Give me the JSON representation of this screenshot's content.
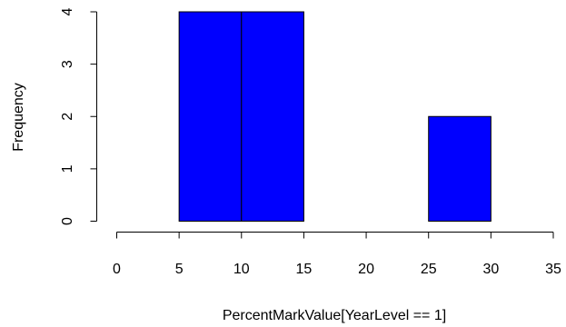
{
  "chart_data": {
    "type": "bar",
    "title": "",
    "xlabel": "PercentMarkValue[YearLevel == 1]",
    "ylabel": "Frequency",
    "bins": [
      {
        "start": 5,
        "end": 10,
        "count": 4
      },
      {
        "start": 10,
        "end": 15,
        "count": 4
      },
      {
        "start": 15,
        "end": 20,
        "count": 0
      },
      {
        "start": 20,
        "end": 25,
        "count": 0
      },
      {
        "start": 25,
        "end": 30,
        "count": 2
      }
    ],
    "xlim": [
      0,
      35
    ],
    "ylim": [
      0,
      4
    ],
    "x_ticks": [
      0,
      5,
      10,
      15,
      20,
      25,
      30,
      35
    ],
    "y_ticks": [
      0,
      1,
      2,
      3,
      4
    ],
    "grid": false,
    "bar_color": "#0000ff",
    "bar_edge_color": "#000000"
  }
}
